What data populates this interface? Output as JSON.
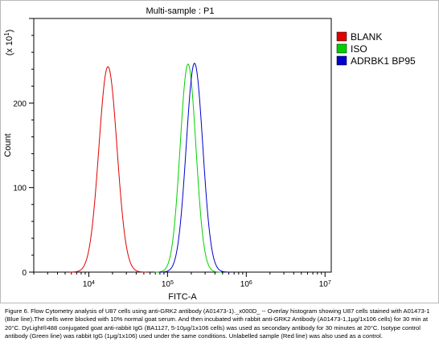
{
  "chart_data": {
    "type": "line",
    "title": "Multi-sample : P1",
    "xlabel": "FITC-A",
    "ylabel": "Count",
    "y_multiplier_label": "(x 10",
    "y_multiplier_exp": "1",
    "y_multiplier_close": ")",
    "x_scale": "log",
    "xlim": [
      2000,
      12000000
    ],
    "ylim": [
      0,
      300
    ],
    "x_ticks": [
      {
        "base": "10",
        "exp": "4",
        "value": 10000
      },
      {
        "base": "10",
        "exp": "5",
        "value": 100000
      },
      {
        "base": "10",
        "exp": "6",
        "value": 1000000
      },
      {
        "base": "10",
        "exp": "7",
        "value": 10000000
      }
    ],
    "y_ticks": [
      {
        "label": "0",
        "value": 0
      },
      {
        "label": "100",
        "value": 100
      },
      {
        "label": "200",
        "value": 200
      }
    ],
    "legend_position": "top-right",
    "series": [
      {
        "name": "BLANK",
        "color": "#e00000",
        "peak_x": 17500,
        "peak_y": 243,
        "sigma_log": 0.115
      },
      {
        "name": "ISO",
        "color": "#00d000",
        "peak_x": 182000,
        "peak_y": 246,
        "sigma_log": 0.1
      },
      {
        "name": "ADRBK1 BP95",
        "color": "#0000cc",
        "peak_x": 220000,
        "peak_y": 247,
        "sigma_log": 0.105
      }
    ]
  },
  "caption": "Figure 6. Flow Cytometry analysis of U87 cells using anti-GRK2 antibody (A01473-1)._x000D_ -- Overlay histogram showing U87 cells stained with A01473-1 (Blue line).The cells were blocked with 10% normal goat serum. And then incubated with rabbit anti-GRK2 Antibody (A01473-1,1μg/1x106 cells) for 30 min at 20°C. DyLight®488 conjugated goat anti-rabbit IgG (BA1127, 5-10μg/1x106 cells) was used as secondary antibody for 30 minutes at 20°C. Isotype control antibody (Green line) was rabbit IgG (1μg/1x106) used under the same conditions. Unlabelled sample (Red line) was also used as a control."
}
